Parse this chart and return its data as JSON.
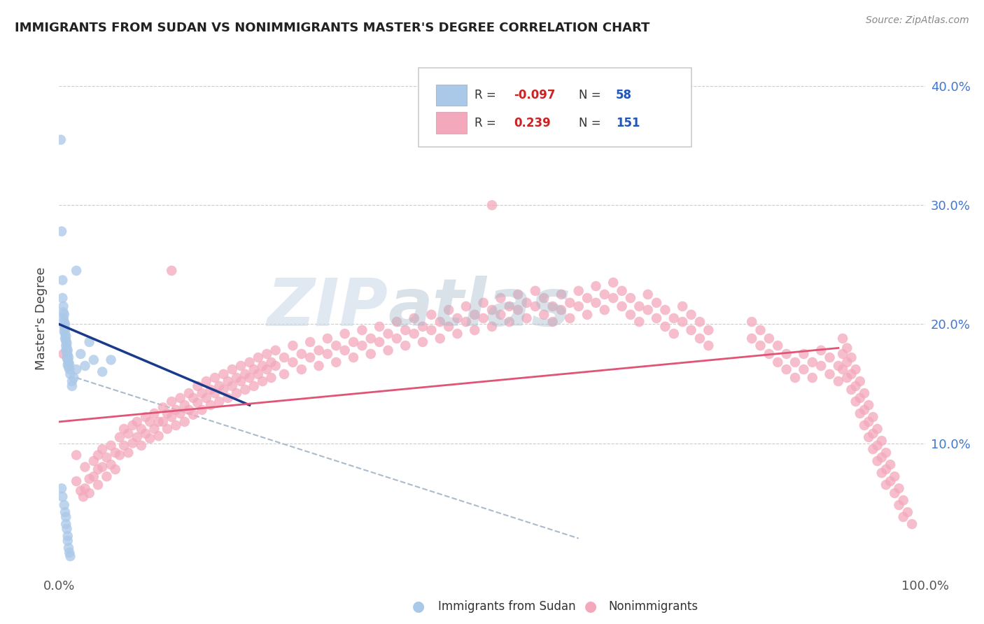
{
  "title": "IMMIGRANTS FROM SUDAN VS NONIMMIGRANTS MASTER'S DEGREE CORRELATION CHART",
  "source": "Source: ZipAtlas.com",
  "ylabel": "Master's Degree",
  "xmin": 0.0,
  "xmax": 1.0,
  "ymin": -0.01,
  "ymax": 0.42,
  "yticks": [
    0.0,
    0.1,
    0.2,
    0.3,
    0.4
  ],
  "ytick_labels": [
    "",
    "10.0%",
    "20.0%",
    "30.0%",
    "40.0%"
  ],
  "xticks": [
    0.0,
    0.25,
    0.5,
    0.75,
    1.0
  ],
  "xtick_labels": [
    "0.0%",
    "",
    "",
    "",
    "100.0%"
  ],
  "grid_color": "#cccccc",
  "legend_R1": "-0.097",
  "legend_N1": "58",
  "legend_R2": "0.239",
  "legend_N2": "151",
  "color_blue": "#aac8e8",
  "color_pink": "#f4a8bc",
  "line_blue": "#1a3a8c",
  "line_pink": "#e05575",
  "line_dashed_color": "#aabbcc",
  "watermark_zip": "ZIP",
  "watermark_atlas": "atlas",
  "blue_scatter": [
    [
      0.002,
      0.355
    ],
    [
      0.02,
      0.245
    ],
    [
      0.003,
      0.278
    ],
    [
      0.004,
      0.237
    ],
    [
      0.004,
      0.222
    ],
    [
      0.005,
      0.215
    ],
    [
      0.005,
      0.21
    ],
    [
      0.005,
      0.205
    ],
    [
      0.006,
      0.208
    ],
    [
      0.006,
      0.202
    ],
    [
      0.006,
      0.198
    ],
    [
      0.006,
      0.194
    ],
    [
      0.007,
      0.2
    ],
    [
      0.007,
      0.196
    ],
    [
      0.007,
      0.192
    ],
    [
      0.007,
      0.188
    ],
    [
      0.008,
      0.19
    ],
    [
      0.008,
      0.186
    ],
    [
      0.008,
      0.182
    ],
    [
      0.008,
      0.178
    ],
    [
      0.009,
      0.184
    ],
    [
      0.009,
      0.18
    ],
    [
      0.009,
      0.176
    ],
    [
      0.009,
      0.172
    ],
    [
      0.01,
      0.178
    ],
    [
      0.01,
      0.174
    ],
    [
      0.01,
      0.17
    ],
    [
      0.01,
      0.166
    ],
    [
      0.011,
      0.172
    ],
    [
      0.011,
      0.168
    ],
    [
      0.011,
      0.164
    ],
    [
      0.012,
      0.166
    ],
    [
      0.012,
      0.162
    ],
    [
      0.013,
      0.158
    ],
    [
      0.015,
      0.152
    ],
    [
      0.015,
      0.148
    ],
    [
      0.017,
      0.155
    ],
    [
      0.02,
      0.162
    ],
    [
      0.025,
      0.175
    ],
    [
      0.03,
      0.165
    ],
    [
      0.035,
      0.185
    ],
    [
      0.04,
      0.17
    ],
    [
      0.05,
      0.16
    ],
    [
      0.06,
      0.17
    ],
    [
      0.003,
      0.062
    ],
    [
      0.004,
      0.055
    ],
    [
      0.006,
      0.048
    ],
    [
      0.007,
      0.042
    ],
    [
      0.008,
      0.038
    ],
    [
      0.008,
      0.032
    ],
    [
      0.009,
      0.028
    ],
    [
      0.01,
      0.022
    ],
    [
      0.01,
      0.018
    ],
    [
      0.011,
      0.012
    ],
    [
      0.012,
      0.008
    ],
    [
      0.013,
      0.005
    ]
  ],
  "pink_scatter": [
    [
      0.005,
      0.175
    ],
    [
      0.02,
      0.09
    ],
    [
      0.02,
      0.068
    ],
    [
      0.025,
      0.06
    ],
    [
      0.028,
      0.055
    ],
    [
      0.03,
      0.08
    ],
    [
      0.03,
      0.062
    ],
    [
      0.035,
      0.07
    ],
    [
      0.035,
      0.058
    ],
    [
      0.04,
      0.085
    ],
    [
      0.04,
      0.072
    ],
    [
      0.045,
      0.09
    ],
    [
      0.045,
      0.078
    ],
    [
      0.045,
      0.065
    ],
    [
      0.05,
      0.095
    ],
    [
      0.05,
      0.08
    ],
    [
      0.055,
      0.088
    ],
    [
      0.055,
      0.072
    ],
    [
      0.06,
      0.098
    ],
    [
      0.06,
      0.082
    ],
    [
      0.065,
      0.092
    ],
    [
      0.065,
      0.078
    ],
    [
      0.07,
      0.105
    ],
    [
      0.07,
      0.09
    ],
    [
      0.075,
      0.112
    ],
    [
      0.075,
      0.098
    ],
    [
      0.08,
      0.108
    ],
    [
      0.08,
      0.092
    ],
    [
      0.085,
      0.115
    ],
    [
      0.085,
      0.1
    ],
    [
      0.09,
      0.118
    ],
    [
      0.09,
      0.105
    ],
    [
      0.095,
      0.112
    ],
    [
      0.095,
      0.098
    ],
    [
      0.1,
      0.122
    ],
    [
      0.1,
      0.108
    ],
    [
      0.105,
      0.118
    ],
    [
      0.105,
      0.104
    ],
    [
      0.11,
      0.125
    ],
    [
      0.11,
      0.112
    ],
    [
      0.115,
      0.118
    ],
    [
      0.115,
      0.106
    ],
    [
      0.12,
      0.13
    ],
    [
      0.12,
      0.118
    ],
    [
      0.125,
      0.125
    ],
    [
      0.125,
      0.112
    ],
    [
      0.13,
      0.135
    ],
    [
      0.13,
      0.122
    ],
    [
      0.13,
      0.245
    ],
    [
      0.135,
      0.128
    ],
    [
      0.135,
      0.115
    ],
    [
      0.14,
      0.138
    ],
    [
      0.14,
      0.125
    ],
    [
      0.145,
      0.132
    ],
    [
      0.145,
      0.118
    ],
    [
      0.15,
      0.142
    ],
    [
      0.15,
      0.128
    ],
    [
      0.155,
      0.138
    ],
    [
      0.155,
      0.124
    ],
    [
      0.16,
      0.148
    ],
    [
      0.16,
      0.134
    ],
    [
      0.165,
      0.142
    ],
    [
      0.165,
      0.128
    ],
    [
      0.17,
      0.152
    ],
    [
      0.17,
      0.138
    ],
    [
      0.175,
      0.145
    ],
    [
      0.175,
      0.132
    ],
    [
      0.18,
      0.155
    ],
    [
      0.18,
      0.142
    ],
    [
      0.185,
      0.148
    ],
    [
      0.185,
      0.135
    ],
    [
      0.19,
      0.158
    ],
    [
      0.19,
      0.145
    ],
    [
      0.195,
      0.152
    ],
    [
      0.195,
      0.138
    ],
    [
      0.2,
      0.162
    ],
    [
      0.2,
      0.148
    ],
    [
      0.205,
      0.155
    ],
    [
      0.205,
      0.142
    ],
    [
      0.21,
      0.165
    ],
    [
      0.21,
      0.152
    ],
    [
      0.215,
      0.158
    ],
    [
      0.215,
      0.145
    ],
    [
      0.22,
      0.168
    ],
    [
      0.22,
      0.155
    ],
    [
      0.225,
      0.162
    ],
    [
      0.225,
      0.148
    ],
    [
      0.23,
      0.172
    ],
    [
      0.23,
      0.158
    ],
    [
      0.235,
      0.165
    ],
    [
      0.235,
      0.152
    ],
    [
      0.24,
      0.175
    ],
    [
      0.24,
      0.162
    ],
    [
      0.245,
      0.168
    ],
    [
      0.245,
      0.155
    ],
    [
      0.25,
      0.178
    ],
    [
      0.25,
      0.165
    ],
    [
      0.26,
      0.172
    ],
    [
      0.26,
      0.158
    ],
    [
      0.27,
      0.182
    ],
    [
      0.27,
      0.168
    ],
    [
      0.28,
      0.175
    ],
    [
      0.28,
      0.162
    ],
    [
      0.29,
      0.185
    ],
    [
      0.29,
      0.172
    ],
    [
      0.3,
      0.178
    ],
    [
      0.3,
      0.165
    ],
    [
      0.31,
      0.188
    ],
    [
      0.31,
      0.175
    ],
    [
      0.32,
      0.182
    ],
    [
      0.32,
      0.168
    ],
    [
      0.33,
      0.192
    ],
    [
      0.33,
      0.178
    ],
    [
      0.34,
      0.185
    ],
    [
      0.34,
      0.172
    ],
    [
      0.35,
      0.195
    ],
    [
      0.35,
      0.182
    ],
    [
      0.36,
      0.188
    ],
    [
      0.36,
      0.175
    ],
    [
      0.37,
      0.198
    ],
    [
      0.37,
      0.185
    ],
    [
      0.38,
      0.192
    ],
    [
      0.38,
      0.178
    ],
    [
      0.39,
      0.202
    ],
    [
      0.39,
      0.188
    ],
    [
      0.4,
      0.195
    ],
    [
      0.4,
      0.182
    ],
    [
      0.41,
      0.205
    ],
    [
      0.41,
      0.192
    ],
    [
      0.42,
      0.198
    ],
    [
      0.42,
      0.185
    ],
    [
      0.43,
      0.208
    ],
    [
      0.43,
      0.195
    ],
    [
      0.44,
      0.202
    ],
    [
      0.44,
      0.188
    ],
    [
      0.45,
      0.212
    ],
    [
      0.45,
      0.198
    ],
    [
      0.46,
      0.205
    ],
    [
      0.46,
      0.192
    ],
    [
      0.47,
      0.215
    ],
    [
      0.47,
      0.202
    ],
    [
      0.48,
      0.208
    ],
    [
      0.48,
      0.195
    ],
    [
      0.49,
      0.218
    ],
    [
      0.49,
      0.205
    ],
    [
      0.5,
      0.212
    ],
    [
      0.5,
      0.198
    ],
    [
      0.5,
      0.3
    ],
    [
      0.51,
      0.222
    ],
    [
      0.51,
      0.208
    ],
    [
      0.52,
      0.215
    ],
    [
      0.52,
      0.202
    ],
    [
      0.53,
      0.225
    ],
    [
      0.53,
      0.212
    ],
    [
      0.54,
      0.218
    ],
    [
      0.54,
      0.205
    ],
    [
      0.55,
      0.228
    ],
    [
      0.55,
      0.215
    ],
    [
      0.56,
      0.222
    ],
    [
      0.56,
      0.208
    ],
    [
      0.57,
      0.215
    ],
    [
      0.57,
      0.202
    ],
    [
      0.58,
      0.225
    ],
    [
      0.58,
      0.212
    ],
    [
      0.59,
      0.218
    ],
    [
      0.59,
      0.205
    ],
    [
      0.6,
      0.228
    ],
    [
      0.6,
      0.215
    ],
    [
      0.61,
      0.222
    ],
    [
      0.61,
      0.208
    ],
    [
      0.62,
      0.232
    ],
    [
      0.62,
      0.218
    ],
    [
      0.63,
      0.225
    ],
    [
      0.63,
      0.212
    ],
    [
      0.64,
      0.235
    ],
    [
      0.64,
      0.222
    ],
    [
      0.65,
      0.228
    ],
    [
      0.65,
      0.215
    ],
    [
      0.66,
      0.222
    ],
    [
      0.66,
      0.208
    ],
    [
      0.67,
      0.215
    ],
    [
      0.67,
      0.202
    ],
    [
      0.68,
      0.225
    ],
    [
      0.68,
      0.212
    ],
    [
      0.69,
      0.218
    ],
    [
      0.69,
      0.205
    ],
    [
      0.7,
      0.212
    ],
    [
      0.7,
      0.198
    ],
    [
      0.71,
      0.205
    ],
    [
      0.71,
      0.192
    ],
    [
      0.72,
      0.215
    ],
    [
      0.72,
      0.202
    ],
    [
      0.73,
      0.208
    ],
    [
      0.73,
      0.195
    ],
    [
      0.74,
      0.202
    ],
    [
      0.74,
      0.188
    ],
    [
      0.75,
      0.195
    ],
    [
      0.75,
      0.182
    ],
    [
      0.8,
      0.202
    ],
    [
      0.8,
      0.188
    ],
    [
      0.81,
      0.195
    ],
    [
      0.81,
      0.182
    ],
    [
      0.82,
      0.188
    ],
    [
      0.82,
      0.175
    ],
    [
      0.83,
      0.182
    ],
    [
      0.83,
      0.168
    ],
    [
      0.84,
      0.175
    ],
    [
      0.84,
      0.162
    ],
    [
      0.85,
      0.168
    ],
    [
      0.85,
      0.155
    ],
    [
      0.86,
      0.175
    ],
    [
      0.86,
      0.162
    ],
    [
      0.87,
      0.168
    ],
    [
      0.87,
      0.155
    ],
    [
      0.88,
      0.178
    ],
    [
      0.88,
      0.165
    ],
    [
      0.89,
      0.172
    ],
    [
      0.89,
      0.158
    ],
    [
      0.9,
      0.165
    ],
    [
      0.9,
      0.152
    ],
    [
      0.905,
      0.188
    ],
    [
      0.905,
      0.175
    ],
    [
      0.905,
      0.162
    ],
    [
      0.91,
      0.18
    ],
    [
      0.91,
      0.168
    ],
    [
      0.91,
      0.155
    ],
    [
      0.915,
      0.172
    ],
    [
      0.915,
      0.158
    ],
    [
      0.915,
      0.145
    ],
    [
      0.92,
      0.162
    ],
    [
      0.92,
      0.148
    ],
    [
      0.92,
      0.135
    ],
    [
      0.925,
      0.152
    ],
    [
      0.925,
      0.138
    ],
    [
      0.925,
      0.125
    ],
    [
      0.93,
      0.142
    ],
    [
      0.93,
      0.128
    ],
    [
      0.93,
      0.115
    ],
    [
      0.935,
      0.132
    ],
    [
      0.935,
      0.118
    ],
    [
      0.935,
      0.105
    ],
    [
      0.94,
      0.122
    ],
    [
      0.94,
      0.108
    ],
    [
      0.94,
      0.095
    ],
    [
      0.945,
      0.112
    ],
    [
      0.945,
      0.098
    ],
    [
      0.945,
      0.085
    ],
    [
      0.95,
      0.102
    ],
    [
      0.95,
      0.088
    ],
    [
      0.95,
      0.075
    ],
    [
      0.955,
      0.092
    ],
    [
      0.955,
      0.078
    ],
    [
      0.955,
      0.065
    ],
    [
      0.96,
      0.082
    ],
    [
      0.96,
      0.068
    ],
    [
      0.965,
      0.072
    ],
    [
      0.965,
      0.058
    ],
    [
      0.97,
      0.062
    ],
    [
      0.97,
      0.048
    ],
    [
      0.975,
      0.052
    ],
    [
      0.975,
      0.038
    ],
    [
      0.98,
      0.042
    ],
    [
      0.985,
      0.032
    ]
  ],
  "blue_line_x": [
    0.0,
    0.22
  ],
  "blue_line_y": [
    0.2,
    0.132
  ],
  "pink_line_x": [
    0.0,
    0.9
  ],
  "pink_line_y": [
    0.118,
    0.18
  ],
  "dashed_line_x": [
    0.02,
    0.6
  ],
  "dashed_line_y": [
    0.155,
    0.02
  ]
}
